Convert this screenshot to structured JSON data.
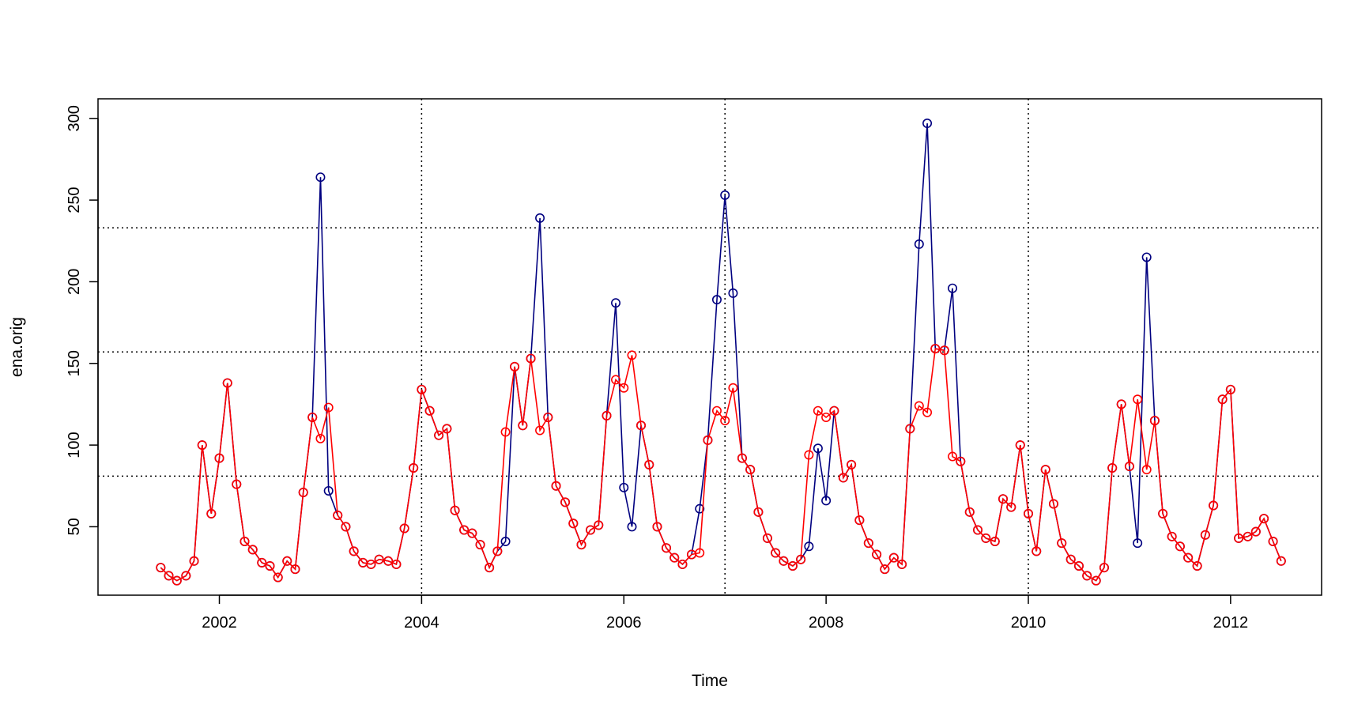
{
  "chart_data": {
    "type": "line",
    "xlabel": "Time",
    "ylabel": "ena.orig",
    "xlim": [
      2000.8,
      2012.9
    ],
    "ylim": [
      8.1,
      312
    ],
    "x_ticks": [
      "2002",
      "2004",
      "2006",
      "2008",
      "2010",
      "2012"
    ],
    "y_ticks": [
      "50",
      "100",
      "150",
      "200",
      "250",
      "300"
    ],
    "vlines": [
      2004.0,
      2007.0,
      2010.0
    ],
    "hlines": [
      81,
      157,
      233
    ],
    "grid": "dotted reference lines",
    "x": [
      2001.42,
      2001.5,
      2001.58,
      2001.67,
      2001.75,
      2001.83,
      2001.92,
      2002.0,
      2002.08,
      2002.17,
      2002.25,
      2002.33,
      2002.42,
      2002.5,
      2002.58,
      2002.67,
      2002.75,
      2002.83,
      2002.92,
      2003.0,
      2003.08,
      2003.17,
      2003.25,
      2003.33,
      2003.42,
      2003.5,
      2003.58,
      2003.67,
      2003.75,
      2003.83,
      2003.92,
      2004.0,
      2004.08,
      2004.17,
      2004.25,
      2004.33,
      2004.42,
      2004.5,
      2004.58,
      2004.67,
      2004.75,
      2004.83,
      2004.92,
      2005.0,
      2005.08,
      2005.17,
      2005.25,
      2005.33,
      2005.42,
      2005.5,
      2005.58,
      2005.67,
      2005.75,
      2005.83,
      2005.92,
      2006.0,
      2006.08,
      2006.17,
      2006.25,
      2006.33,
      2006.42,
      2006.5,
      2006.58,
      2006.67,
      2006.75,
      2006.83,
      2006.92,
      2007.0,
      2007.08,
      2007.17,
      2007.25,
      2007.33,
      2007.42,
      2007.5,
      2007.58,
      2007.67,
      2007.75,
      2007.83,
      2007.92,
      2008.0,
      2008.08,
      2008.17,
      2008.25,
      2008.33,
      2008.42,
      2008.5,
      2008.58,
      2008.67,
      2008.75,
      2008.83,
      2008.92,
      2009.0,
      2009.08,
      2009.17,
      2009.25,
      2009.33,
      2009.42,
      2009.5,
      2009.58,
      2009.67,
      2009.75,
      2009.83,
      2009.92,
      2010.0,
      2010.08,
      2010.17,
      2010.25,
      2010.33,
      2010.42,
      2010.5,
      2010.58,
      2010.67,
      2010.75,
      2010.83,
      2010.92,
      2011.0,
      2011.08,
      2011.17,
      2011.25,
      2011.33,
      2011.42,
      2011.5,
      2011.58,
      2011.67,
      2011.75,
      2011.83,
      2011.92,
      2012.0,
      2012.08,
      2012.17,
      2012.25,
      2012.33,
      2012.42,
      2012.5
    ],
    "series": [
      {
        "color": "#000080",
        "values": [
          25,
          20,
          17,
          20,
          29,
          100,
          58,
          92,
          138,
          76,
          41,
          36,
          28,
          26,
          19,
          29,
          24,
          71,
          117,
          264,
          72,
          57,
          50,
          35,
          28,
          27,
          30,
          29,
          27,
          49,
          86,
          134,
          121,
          106,
          110,
          60,
          48,
          46,
          39,
          25,
          35,
          41,
          148,
          112,
          153,
          239,
          117,
          75,
          65,
          52,
          39,
          48,
          51,
          118,
          187,
          74,
          50,
          112,
          88,
          50,
          37,
          31,
          27,
          33,
          61,
          103,
          189,
          253,
          193,
          92,
          85,
          59,
          43,
          34,
          29,
          26,
          30,
          38,
          98,
          66,
          121,
          80,
          88,
          54,
          40,
          33,
          24,
          31,
          27,
          110,
          223,
          297,
          159,
          158,
          196,
          90,
          59,
          48,
          43,
          41,
          67,
          62,
          100,
          58,
          35,
          85,
          64,
          40,
          30,
          26,
          20,
          17,
          25,
          86,
          125,
          87,
          40,
          215,
          115,
          58,
          44,
          38,
          31,
          26,
          45,
          63,
          128,
          134,
          43,
          44,
          47,
          55,
          41,
          29
        ]
      },
      {
        "color": "#ff0000",
        "values": [
          25,
          20,
          17,
          20,
          29,
          100,
          58,
          92,
          138,
          76,
          41,
          36,
          28,
          26,
          19,
          29,
          24,
          71,
          117,
          104,
          123,
          57,
          50,
          35,
          28,
          27,
          30,
          29,
          27,
          49,
          86,
          134,
          121,
          106,
          110,
          60,
          48,
          46,
          39,
          25,
          35,
          108,
          148,
          112,
          153,
          109,
          117,
          75,
          65,
          52,
          39,
          48,
          51,
          118,
          140,
          135,
          155,
          112,
          88,
          50,
          37,
          31,
          27,
          33,
          34,
          103,
          121,
          115,
          135,
          92,
          85,
          59,
          43,
          34,
          29,
          26,
          30,
          94,
          121,
          117,
          121,
          80,
          88,
          54,
          40,
          33,
          24,
          31,
          27,
          110,
          124,
          120,
          159,
          158,
          93,
          90,
          59,
          48,
          43,
          41,
          67,
          62,
          100,
          58,
          35,
          85,
          64,
          40,
          30,
          26,
          20,
          17,
          25,
          86,
          125,
          87,
          128,
          85,
          115,
          58,
          44,
          38,
          31,
          26,
          45,
          63,
          128,
          134,
          43,
          44,
          47,
          55,
          41,
          29
        ]
      }
    ]
  }
}
